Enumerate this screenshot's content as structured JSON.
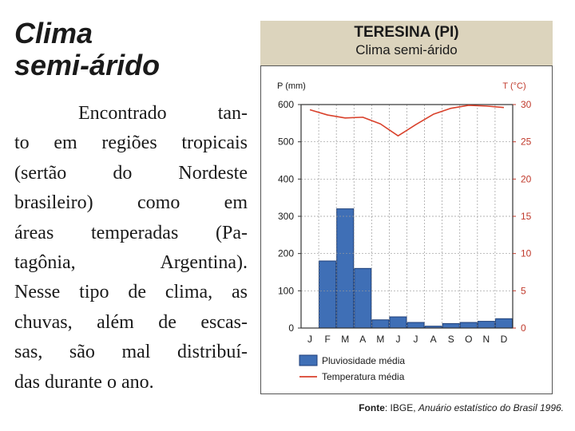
{
  "heading": {
    "line1": "Clima",
    "line2": "semi-árido"
  },
  "paragraph": [
    "Encontrado tan-",
    "to em regiões tropicais",
    "(sertão do Nordeste",
    "brasileiro) como em",
    "áreas temperadas (Pa-",
    "tagônia, Argentina).",
    "Nesse tipo de clima, as",
    "chuvas, além de escas-",
    "sas, são mal distribuí-",
    "das durante o ano."
  ],
  "chart_header": {
    "title": "TERESINA (PI)",
    "subtitle": "Clima semi-árido"
  },
  "source": {
    "label": "Fonte",
    "sep": ": IBGE, ",
    "work": "Anuário estatístico do Brasil 1996."
  },
  "colors": {
    "bar": "#3f6fb6",
    "bar_edge": "#1c3e78",
    "line": "#d9412b",
    "header_bg": "#dcd4bd"
  },
  "chart_data": {
    "type": "bar",
    "ylabel_left": "P (mm)",
    "ylabel_right": "T (°C)",
    "categories": [
      "J",
      "F",
      "M",
      "A",
      "M",
      "J",
      "J",
      "A",
      "S",
      "O",
      "N",
      "D"
    ],
    "ylim_left": [
      0,
      600
    ],
    "yticks_left": [
      "0",
      "100",
      "200",
      "300",
      "400",
      "500",
      "600"
    ],
    "ylim_right": [
      0,
      30
    ],
    "yticks_right": [
      "0",
      "5",
      "10",
      "15",
      "20",
      "25",
      "30"
    ],
    "grid": true,
    "series": [
      {
        "name": "Pluviosidade média",
        "type": "bar",
        "axis": "left",
        "values": [
          0,
          180,
          320,
          160,
          22,
          30,
          15,
          5,
          12,
          15,
          18,
          25
        ]
      },
      {
        "name": "Temperatura média",
        "type": "line",
        "axis": "right",
        "values": [
          29.3,
          28.6,
          28.2,
          28.3,
          27.4,
          25.8,
          27.3,
          28.7,
          29.5,
          29.9,
          29.8,
          29.6
        ]
      }
    ],
    "legend_position": "bottom"
  }
}
